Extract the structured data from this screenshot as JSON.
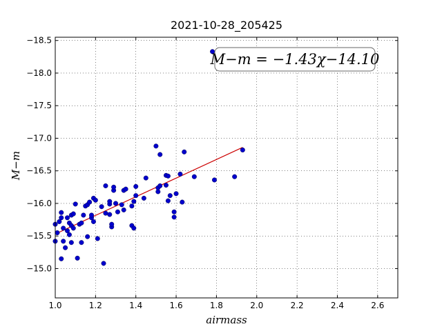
{
  "chart_data": {
    "type": "scatter",
    "title": "2021-10-28_205425",
    "xlabel": "airmass",
    "ylabel": "M−m",
    "xlim": [
      1.0,
      2.7
    ],
    "ylim": [
      -18.55,
      -14.55
    ],
    "ylim_inverted": true,
    "xticks": [
      "1.0",
      "1.2",
      "1.4",
      "1.6",
      "1.8",
      "2.0",
      "2.2",
      "2.4",
      "2.6"
    ],
    "xtick_values": [
      1.0,
      1.2,
      1.4,
      1.6,
      1.8,
      2.0,
      2.2,
      2.4,
      2.6
    ],
    "yticks": [
      "−15.0",
      "−15.5",
      "−16.0",
      "−16.5",
      "−17.0",
      "−17.5",
      "−18.0",
      "−18.5"
    ],
    "ytick_values": [
      -15.0,
      -15.5,
      -16.0,
      -16.5,
      -17.0,
      -17.5,
      -18.0,
      -18.5
    ],
    "grid": true,
    "annotation": "M−m = −1.43χ−14.10",
    "annotation_position": "top-right",
    "colors": {
      "points": "#0000cc",
      "fit": "#cc0000"
    },
    "fit": {
      "slope": -1.43,
      "intercept": -14.1,
      "x_range": [
        1.0,
        1.93
      ]
    },
    "points": [
      [
        1.0,
        -15.42
      ],
      [
        1.0,
        -15.68
      ],
      [
        1.01,
        -15.55
      ],
      [
        1.02,
        -15.72
      ],
      [
        1.03,
        -15.15
      ],
      [
        1.03,
        -15.78
      ],
      [
        1.03,
        -15.86
      ],
      [
        1.04,
        -15.42
      ],
      [
        1.04,
        -15.62
      ],
      [
        1.05,
        -15.32
      ],
      [
        1.06,
        -15.58
      ],
      [
        1.06,
        -15.78
      ],
      [
        1.07,
        -15.52
      ],
      [
        1.07,
        -15.7
      ],
      [
        1.08,
        -15.4
      ],
      [
        1.08,
        -15.66
      ],
      [
        1.08,
        -15.82
      ],
      [
        1.09,
        -15.84
      ],
      [
        1.09,
        -15.62
      ],
      [
        1.1,
        -15.99
      ],
      [
        1.11,
        -15.16
      ],
      [
        1.12,
        -15.68
      ],
      [
        1.13,
        -15.4
      ],
      [
        1.13,
        -15.7
      ],
      [
        1.14,
        -15.82
      ],
      [
        1.15,
        -15.96
      ],
      [
        1.16,
        -15.49
      ],
      [
        1.16,
        -15.98
      ],
      [
        1.17,
        -16.02
      ],
      [
        1.18,
        -15.78
      ],
      [
        1.18,
        -15.82
      ],
      [
        1.19,
        -15.72
      ],
      [
        1.19,
        -16.08
      ],
      [
        1.2,
        -16.05
      ],
      [
        1.21,
        -15.46
      ],
      [
        1.23,
        -15.95
      ],
      [
        1.24,
        -15.08
      ],
      [
        1.25,
        -15.85
      ],
      [
        1.25,
        -16.27
      ],
      [
        1.27,
        -15.83
      ],
      [
        1.27,
        -15.99
      ],
      [
        1.27,
        -16.03
      ],
      [
        1.28,
        -15.64
      ],
      [
        1.28,
        -15.68
      ],
      [
        1.29,
        -16.2
      ],
      [
        1.29,
        -16.25
      ],
      [
        1.3,
        -16.0
      ],
      [
        1.31,
        -15.87
      ],
      [
        1.33,
        -15.98
      ],
      [
        1.34,
        -15.9
      ],
      [
        1.34,
        -16.2
      ],
      [
        1.35,
        -16.22
      ],
      [
        1.38,
        -15.96
      ],
      [
        1.38,
        -15.66
      ],
      [
        1.39,
        -16.03
      ],
      [
        1.39,
        -15.62
      ],
      [
        1.4,
        -16.12
      ],
      [
        1.4,
        -16.26
      ],
      [
        1.44,
        -16.08
      ],
      [
        1.45,
        -16.39
      ],
      [
        1.5,
        -16.88
      ],
      [
        1.51,
        -16.18
      ],
      [
        1.51,
        -16.24
      ],
      [
        1.52,
        -16.75
      ],
      [
        1.52,
        -16.27
      ],
      [
        1.55,
        -16.28
      ],
      [
        1.55,
        -16.43
      ],
      [
        1.56,
        -16.42
      ],
      [
        1.56,
        -16.04
      ],
      [
        1.57,
        -16.12
      ],
      [
        1.59,
        -15.79
      ],
      [
        1.59,
        -15.87
      ],
      [
        1.6,
        -16.15
      ],
      [
        1.62,
        -16.45
      ],
      [
        1.63,
        -16.02
      ],
      [
        1.64,
        -16.79
      ],
      [
        1.69,
        -16.41
      ],
      [
        1.78,
        -18.33
      ],
      [
        1.79,
        -16.36
      ],
      [
        1.89,
        -16.41
      ],
      [
        1.93,
        -16.82
      ]
    ]
  }
}
